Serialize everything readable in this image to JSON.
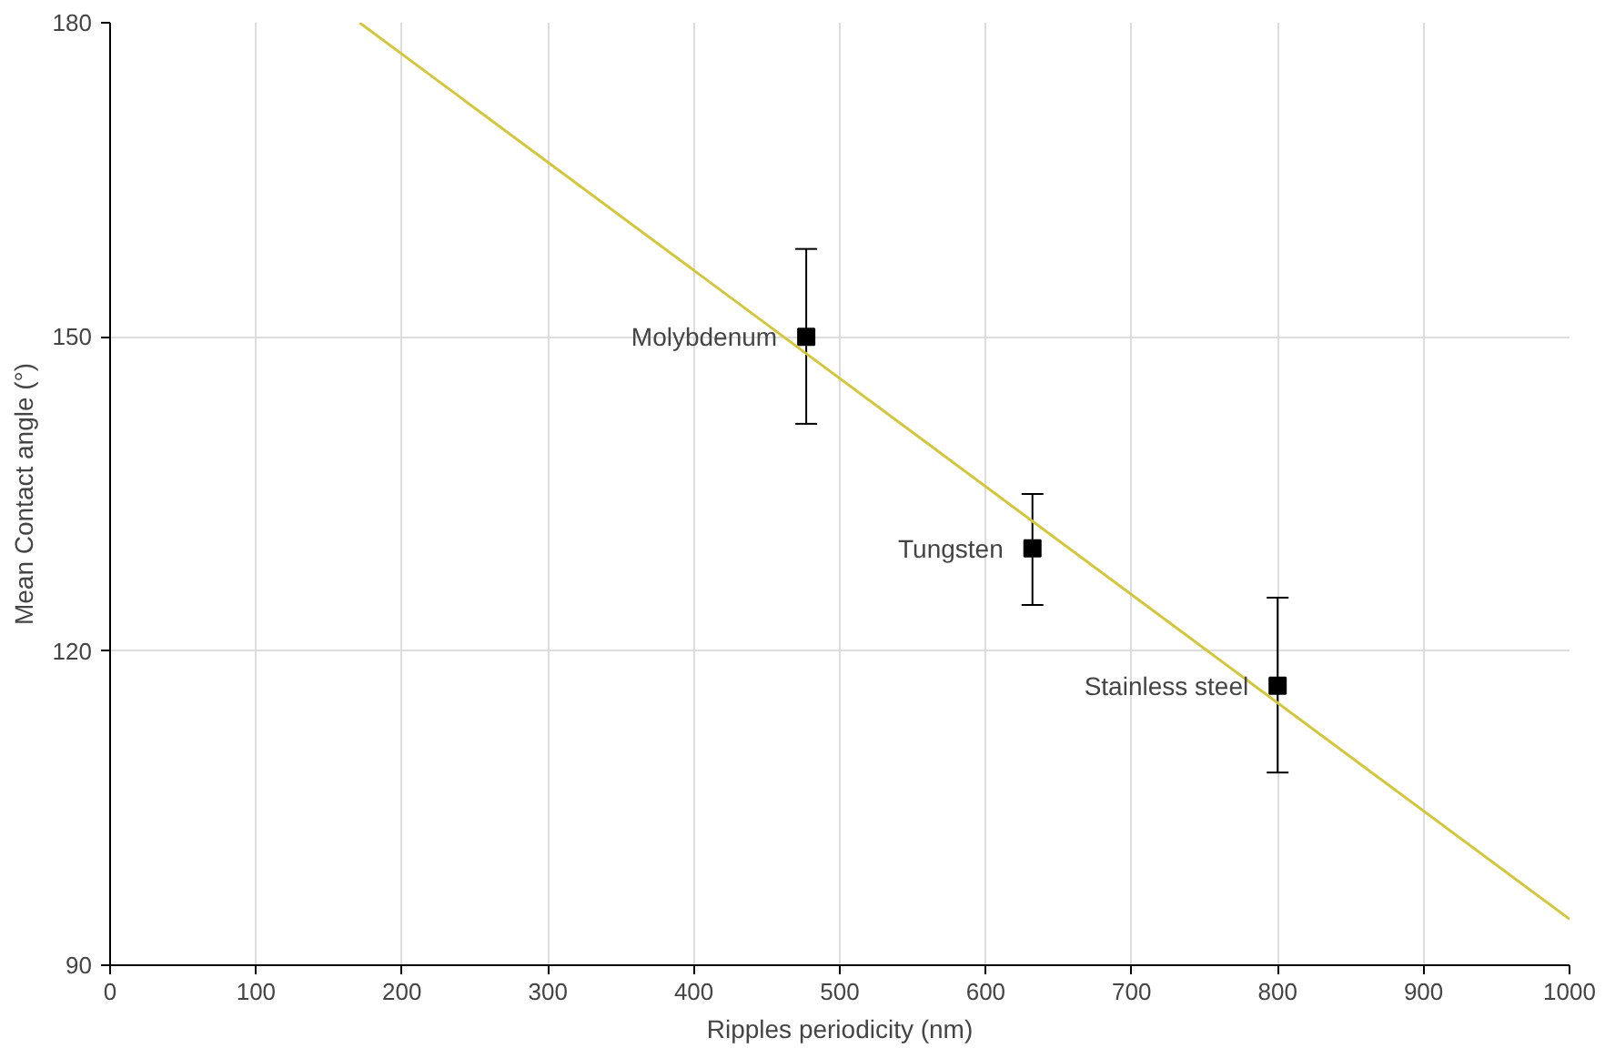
{
  "chart_data": {
    "type": "scatter",
    "xlabel": "Ripples periodicity (nm)",
    "ylabel": "Mean Contact angle (°)",
    "xlim": [
      0,
      1000
    ],
    "xticks": [
      0,
      100,
      200,
      300,
      400,
      500,
      600,
      700,
      800,
      900,
      1000
    ],
    "ylim": [
      90,
      180
    ],
    "yticks": [
      90,
      120,
      150,
      180
    ],
    "grid": true,
    "series": [
      {
        "marker": "square",
        "color": "#000000",
        "x": [
          477,
          632,
          800
        ],
        "values": [
          150,
          129.8,
          116.7
        ],
        "errors": [
          [
            141.7,
            158.4
          ],
          [
            124.4,
            135.0
          ],
          [
            108.4,
            125.1
          ]
        ]
      },
      {
        "type": "line",
        "color": "#d4c63a",
        "x": [
          171,
          1000
        ],
        "values": [
          180,
          94.4
        ]
      }
    ],
    "annotations": [
      {
        "text": "Molybdenum",
        "x": 477,
        "y": 150
      },
      {
        "text": "Tungsten",
        "x": 632,
        "y": 129.8
      },
      {
        "text": "Stainless steel",
        "x": 800,
        "y": 116.7
      }
    ]
  }
}
